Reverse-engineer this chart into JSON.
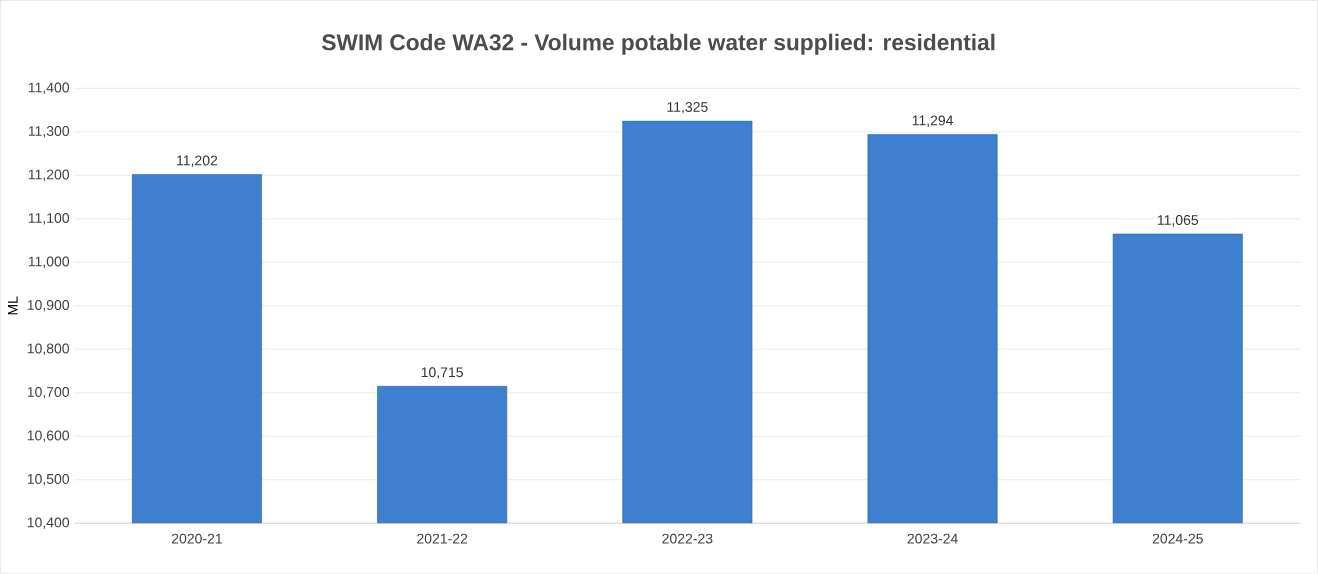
{
  "chart_data": {
    "type": "bar",
    "title": "SWIM Code WA32 - Volume potable water supplied: residential",
    "ylabel": "ML",
    "categories": [
      "2020-21",
      "2021-22",
      "2022-23",
      "2023-24",
      "2024-25"
    ],
    "values": [
      11202,
      10715,
      11325,
      11294,
      11065
    ],
    "value_labels": [
      "11,202",
      "10,715",
      "11,325",
      "11,294",
      "11,065"
    ],
    "color": "#3e7fcf",
    "ylim": [
      10400,
      11400
    ],
    "yticks": [
      {
        "value": 10400,
        "label": "10,400"
      },
      {
        "value": 10500,
        "label": "10,500"
      },
      {
        "value": 10600,
        "label": "10,600"
      },
      {
        "value": 10700,
        "label": "10,700"
      },
      {
        "value": 10800,
        "label": "10,800"
      },
      {
        "value": 10900,
        "label": "10,900"
      },
      {
        "value": 11000,
        "label": "11,000"
      },
      {
        "value": 11100,
        "label": "11,100"
      },
      {
        "value": 11200,
        "label": "11,200"
      },
      {
        "value": 11300,
        "label": "11,300"
      },
      {
        "value": 11400,
        "label": "11,400"
      }
    ],
    "grid": "y"
  }
}
